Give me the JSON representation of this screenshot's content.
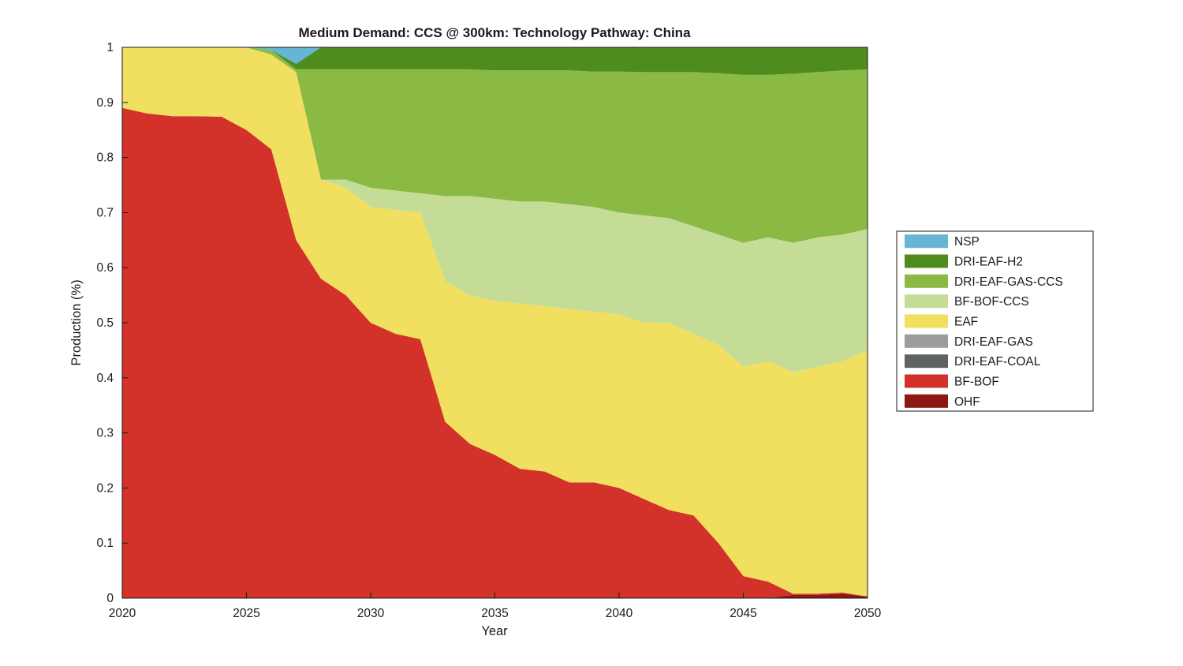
{
  "figure": {
    "background": "#ffffff"
  },
  "chart_data": {
    "type": "area",
    "stacked": true,
    "title": "Medium Demand: CCS @ 300km: Technology Pathway: China",
    "xlabel": "Year",
    "ylabel": "Production (%)",
    "xlim": [
      2020,
      2050
    ],
    "ylim": [
      0,
      1
    ],
    "grid": false,
    "x_ticks": [
      2020,
      2025,
      2030,
      2035,
      2040,
      2045,
      2050
    ],
    "x_tick_labels": [
      "2020",
      "2025",
      "2030",
      "2035",
      "2040",
      "2045",
      "2050"
    ],
    "y_ticks": [
      0,
      0.1,
      0.2,
      0.3,
      0.4,
      0.5,
      0.6,
      0.7,
      0.8,
      0.9,
      1
    ],
    "y_tick_labels": [
      "0",
      "0.1",
      "0.2",
      "0.3",
      "0.4",
      "0.5",
      "0.6",
      "0.7",
      "0.8",
      "0.9",
      "1"
    ],
    "x": [
      2020,
      2021,
      2022,
      2023,
      2024,
      2025,
      2026,
      2027,
      2028,
      2029,
      2030,
      2031,
      2032,
      2033,
      2034,
      2035,
      2036,
      2037,
      2038,
      2039,
      2040,
      2041,
      2042,
      2043,
      2044,
      2045,
      2046,
      2047,
      2048,
      2049,
      2050
    ],
    "series": [
      {
        "name": "OHF",
        "color": "#8e1711",
        "values": [
          0,
          0,
          0,
          0,
          0,
          0,
          0,
          0,
          0,
          0,
          0,
          0,
          0,
          0,
          0,
          0,
          0,
          0,
          0,
          0,
          0,
          0,
          0,
          0,
          0,
          0,
          0,
          0.006,
          0.006,
          0.008,
          0.003
        ]
      },
      {
        "name": "BF-BOF",
        "color": "#d3322a",
        "values": [
          0.89,
          0.88,
          0.875,
          0.875,
          0.874,
          0.85,
          0.815,
          0.65,
          0.58,
          0.55,
          0.5,
          0.48,
          0.47,
          0.32,
          0.28,
          0.26,
          0.235,
          0.23,
          0.21,
          0.21,
          0.2,
          0.18,
          0.16,
          0.15,
          0.1,
          0.04,
          0.03,
          0.002,
          0.002,
          0.002,
          0
        ]
      },
      {
        "name": "DRI-EAF-COAL",
        "color": "#5e6361",
        "values": [
          0,
          0,
          0,
          0,
          0,
          0,
          0,
          0,
          0,
          0,
          0,
          0,
          0,
          0,
          0,
          0,
          0,
          0,
          0,
          0,
          0,
          0,
          0,
          0,
          0,
          0,
          0,
          0,
          0,
          0,
          0
        ]
      },
      {
        "name": "DRI-EAF-GAS",
        "color": "#9c9c9c",
        "values": [
          0,
          0,
          0,
          0,
          0,
          0,
          0,
          0,
          0,
          0,
          0,
          0,
          0,
          0,
          0,
          0,
          0,
          0,
          0,
          0,
          0,
          0,
          0,
          0,
          0,
          0,
          0,
          0,
          0,
          0,
          0
        ]
      },
      {
        "name": "EAF",
        "color": "#f1df60",
        "values": [
          0.11,
          0.12,
          0.125,
          0.125,
          0.126,
          0.15,
          0.172,
          0.305,
          0.18,
          0.195,
          0.21,
          0.225,
          0.23,
          0.255,
          0.27,
          0.28,
          0.3,
          0.3,
          0.315,
          0.31,
          0.315,
          0.32,
          0.34,
          0.33,
          0.36,
          0.38,
          0.4,
          0.402,
          0.412,
          0.42,
          0.447
        ]
      },
      {
        "name": "BF-BOF-CCS",
        "color": "#c5dc96",
        "values": [
          0,
          0,
          0,
          0,
          0,
          0,
          0,
          0,
          0,
          0.015,
          0.035,
          0.035,
          0.035,
          0.155,
          0.18,
          0.185,
          0.185,
          0.19,
          0.19,
          0.19,
          0.185,
          0.195,
          0.19,
          0.195,
          0.2,
          0.225,
          0.225,
          0.235,
          0.235,
          0.23,
          0.22
        ]
      },
      {
        "name": "DRI-EAF-GAS-CCS",
        "color": "#8aba43",
        "values": [
          0,
          0,
          0,
          0,
          0,
          0,
          0.008,
          0.005,
          0.2,
          0.2,
          0.215,
          0.22,
          0.225,
          0.23,
          0.23,
          0.233,
          0.238,
          0.238,
          0.243,
          0.246,
          0.256,
          0.26,
          0.265,
          0.28,
          0.293,
          0.305,
          0.295,
          0.307,
          0.3,
          0.298,
          0.29
        ]
      },
      {
        "name": "DRI-EAF-H2",
        "color": "#4f8c1f",
        "values": [
          0,
          0,
          0,
          0,
          0,
          0,
          0,
          0.01,
          0.04,
          0.04,
          0.04,
          0.04,
          0.04,
          0.04,
          0.04,
          0.042,
          0.042,
          0.042,
          0.042,
          0.044,
          0.044,
          0.045,
          0.045,
          0.045,
          0.047,
          0.05,
          0.05,
          0.048,
          0.045,
          0.042,
          0.04
        ]
      },
      {
        "name": "NSP",
        "color": "#66b5d4",
        "values": [
          0,
          0,
          0,
          0,
          0,
          0,
          0.005,
          0.03,
          0,
          0,
          0,
          0,
          0,
          0,
          0,
          0,
          0,
          0,
          0,
          0,
          0,
          0,
          0,
          0,
          0,
          0,
          0,
          0,
          0,
          0,
          0
        ]
      }
    ],
    "legend": {
      "position": "right-outside",
      "items": [
        {
          "label": "NSP",
          "color": "#66b5d4"
        },
        {
          "label": "DRI-EAF-H2",
          "color": "#4f8c1f"
        },
        {
          "label": "DRI-EAF-GAS-CCS",
          "color": "#8aba43"
        },
        {
          "label": "BF-BOF-CCS",
          "color": "#c5dc96"
        },
        {
          "label": "EAF",
          "color": "#f1df60"
        },
        {
          "label": "DRI-EAF-GAS",
          "color": "#9c9c9c"
        },
        {
          "label": "DRI-EAF-COAL",
          "color": "#5e6361"
        },
        {
          "label": "BF-BOF",
          "color": "#d3322a"
        },
        {
          "label": "OHF",
          "color": "#8e1711"
        }
      ]
    }
  }
}
